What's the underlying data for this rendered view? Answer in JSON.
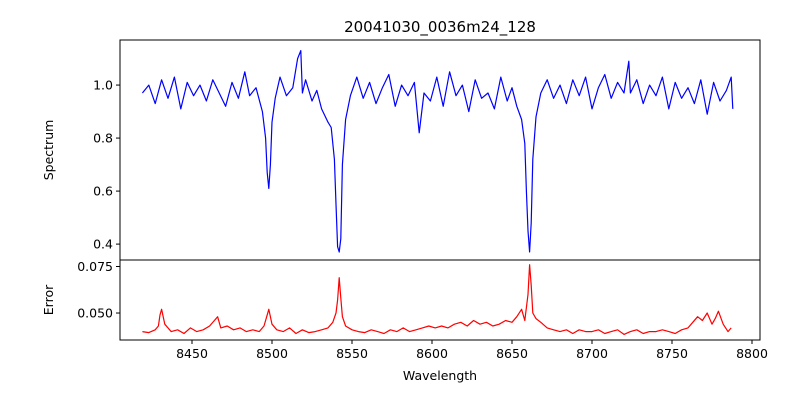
{
  "chart_data": {
    "type": "line",
    "title": "20041030_0036m24_128",
    "xlabel": "Wavelength",
    "x_ticks": [
      8450,
      8500,
      8550,
      8600,
      8650,
      8700,
      8750,
      8800
    ],
    "xlim": [
      8405,
      8805
    ],
    "grid": false,
    "panels": [
      {
        "name": "spectrum",
        "ylabel": "Spectrum",
        "ylim": [
          0.34,
          1.17
        ],
        "y_ticks": [
          0.4,
          0.6,
          0.8,
          1.0
        ],
        "y_tick_labels": [
          "0.4",
          "0.6",
          "0.8",
          "1.0"
        ],
        "series": [
          {
            "color": "#0000ff",
            "x": [
              8419,
              8423,
              8427,
              8431,
              8435,
              8439,
              8443,
              8447,
              8451,
              8455,
              8459,
              8463,
              8467,
              8471,
              8475,
              8479,
              8483,
              8486,
              8490,
              8494,
              8496,
              8497,
              8498,
              8499,
              8500,
              8502,
              8505,
              8509,
              8513,
              8516,
              8518,
              8519,
              8521,
              8525,
              8528,
              8531,
              8535,
              8537,
              8539,
              8540,
              8541,
              8542,
              8543,
              8544,
              8546,
              8549,
              8553,
              8557,
              8561,
              8565,
              8569,
              8573,
              8577,
              8581,
              8585,
              8589,
              8592,
              8595,
              8599,
              8603,
              8607,
              8611,
              8615,
              8619,
              8623,
              8627,
              8631,
              8635,
              8639,
              8643,
              8647,
              8650,
              8653,
              8656,
              8658,
              8659,
              8660,
              8661,
              8662,
              8663,
              8665,
              8668,
              8672,
              8676,
              8680,
              8684,
              8688,
              8692,
              8696,
              8700,
              8704,
              8708,
              8712,
              8716,
              8720,
              8723,
              8724,
              8728,
              8732,
              8736,
              8740,
              8744,
              8748,
              8752,
              8756,
              8760,
              8764,
              8768,
              8772,
              8776,
              8780,
              8784,
              8787,
              8788
            ],
            "y": [
              0.97,
              1.0,
              0.93,
              1.02,
              0.95,
              1.03,
              0.91,
              1.01,
              0.96,
              1.0,
              0.94,
              1.02,
              0.97,
              0.92,
              1.01,
              0.95,
              1.05,
              0.96,
              0.99,
              0.9,
              0.8,
              0.67,
              0.61,
              0.7,
              0.86,
              0.95,
              1.03,
              0.96,
              0.99,
              1.1,
              1.13,
              0.97,
              1.02,
              0.94,
              0.98,
              0.91,
              0.86,
              0.84,
              0.72,
              0.55,
              0.39,
              0.37,
              0.42,
              0.7,
              0.87,
              0.96,
              1.03,
              0.95,
              1.01,
              0.93,
              0.99,
              1.04,
              0.92,
              1.0,
              0.96,
              1.01,
              0.82,
              0.97,
              0.94,
              1.03,
              0.92,
              1.05,
              0.96,
              1.0,
              0.9,
              1.02,
              0.95,
              0.97,
              0.91,
              1.03,
              0.94,
              0.99,
              0.92,
              0.87,
              0.78,
              0.6,
              0.45,
              0.37,
              0.48,
              0.72,
              0.88,
              0.97,
              1.02,
              0.95,
              1.0,
              0.93,
              1.02,
              0.96,
              1.03,
              0.91,
              0.99,
              1.04,
              0.95,
              1.01,
              0.97,
              1.09,
              0.97,
              1.02,
              0.93,
              1.0,
              0.96,
              1.03,
              0.91,
              1.01,
              0.95,
              0.99,
              0.93,
              1.02,
              0.89,
              1.01,
              0.94,
              0.98,
              1.03,
              0.91
            ]
          }
        ]
      },
      {
        "name": "error",
        "ylabel": "Error",
        "ylim": [
          0.0355,
          0.0785
        ],
        "y_ticks": [
          0.05,
          0.075
        ],
        "y_tick_labels": [
          "0.050",
          "0.075"
        ],
        "series": [
          {
            "color": "#ff0000",
            "x": [
              8419,
              8423,
              8427,
              8429,
              8430,
              8431,
              8433,
              8437,
              8441,
              8445,
              8449,
              8453,
              8457,
              8461,
              8464,
              8466,
              8468,
              8472,
              8476,
              8480,
              8484,
              8488,
              8492,
              8495,
              8497,
              8498,
              8500,
              8503,
              8507,
              8511,
              8515,
              8519,
              8523,
              8527,
              8531,
              8535,
              8538,
              8540,
              8541,
              8542,
              8543,
              8544,
              8546,
              8550,
              8554,
              8558,
              8562,
              8566,
              8570,
              8574,
              8578,
              8582,
              8586,
              8590,
              8594,
              8598,
              8602,
              8606,
              8610,
              8614,
              8618,
              8622,
              8626,
              8630,
              8634,
              8638,
              8642,
              8646,
              8650,
              8653,
              8656,
              8658,
              8660,
              8661,
              8662,
              8663,
              8665,
              8668,
              8672,
              8676,
              8680,
              8684,
              8688,
              8692,
              8696,
              8700,
              8704,
              8708,
              8712,
              8716,
              8720,
              8724,
              8728,
              8732,
              8736,
              8740,
              8744,
              8748,
              8752,
              8756,
              8760,
              8763,
              8766,
              8769,
              8772,
              8775,
              8777,
              8779,
              8782,
              8785,
              8787
            ],
            "y": [
              0.04,
              0.0395,
              0.041,
              0.043,
              0.049,
              0.052,
              0.044,
              0.04,
              0.041,
              0.039,
              0.042,
              0.04,
              0.041,
              0.043,
              0.046,
              0.048,
              0.042,
              0.043,
              0.041,
              0.042,
              0.04,
              0.041,
              0.04,
              0.043,
              0.049,
              0.052,
              0.044,
              0.041,
              0.04,
              0.042,
              0.039,
              0.041,
              0.0395,
              0.04,
              0.041,
              0.042,
              0.045,
              0.05,
              0.057,
              0.069,
              0.058,
              0.048,
              0.043,
              0.041,
              0.04,
              0.0395,
              0.041,
              0.04,
              0.039,
              0.041,
              0.04,
              0.042,
              0.04,
              0.041,
              0.042,
              0.043,
              0.042,
              0.043,
              0.042,
              0.044,
              0.045,
              0.043,
              0.046,
              0.044,
              0.045,
              0.043,
              0.044,
              0.046,
              0.045,
              0.048,
              0.052,
              0.046,
              0.06,
              0.076,
              0.065,
              0.05,
              0.047,
              0.045,
              0.042,
              0.041,
              0.04,
              0.041,
              0.039,
              0.041,
              0.04,
              0.04,
              0.041,
              0.039,
              0.04,
              0.041,
              0.0385,
              0.04,
              0.041,
              0.039,
              0.04,
              0.04,
              0.041,
              0.04,
              0.039,
              0.041,
              0.042,
              0.045,
              0.048,
              0.046,
              0.05,
              0.044,
              0.047,
              0.051,
              0.044,
              0.04,
              0.042
            ]
          }
        ]
      }
    ]
  }
}
